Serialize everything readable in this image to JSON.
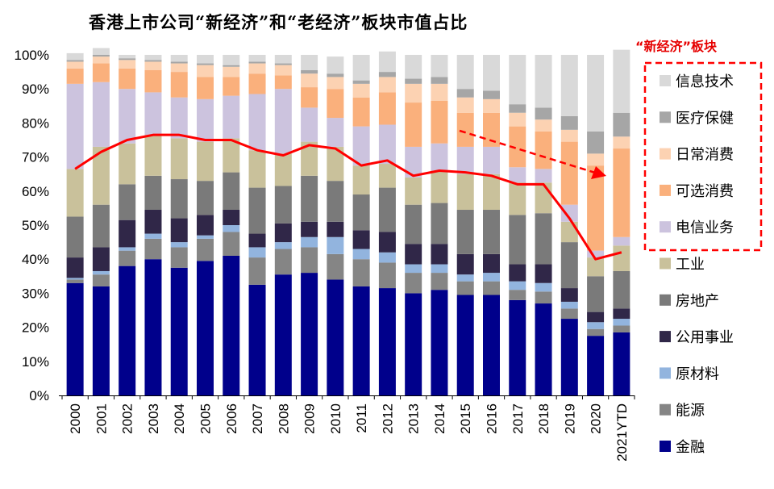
{
  "chart_data": {
    "type": "bar",
    "stacked": true,
    "title": "香港上市公司“新经济”和“老经济”板块市值占比",
    "new_economy_label": "“新经济”板块",
    "categories": [
      "2000",
      "2001",
      "2002",
      "2003",
      "2004",
      "2005",
      "2006",
      "2007",
      "2008",
      "2009",
      "2010",
      "2011",
      "2012",
      "2013",
      "2014",
      "2015",
      "2016",
      "2017",
      "2018",
      "2019",
      "2020",
      "2021YTD"
    ],
    "ylim": [
      0,
      100
    ],
    "yticks": [
      "0%",
      "10%",
      "20%",
      "30%",
      "40%",
      "50%",
      "60%",
      "70%",
      "80%",
      "90%",
      "100%"
    ],
    "series": [
      {
        "name": "金融",
        "color": "#00008b",
        "values": [
          33,
          32,
          38,
          40,
          37.5,
          39.5,
          41,
          32.5,
          35.5,
          36,
          34,
          32,
          31.5,
          30,
          31,
          29.5,
          29.5,
          28,
          27,
          22.5,
          17.5,
          18.5
        ]
      },
      {
        "name": "能源",
        "color": "#858585",
        "values": [
          1,
          3.5,
          4.5,
          6,
          6,
          6.5,
          7,
          8,
          7.5,
          7.5,
          7.5,
          8,
          7.5,
          6,
          5,
          4,
          4,
          3,
          3.5,
          3,
          2,
          2
        ]
      },
      {
        "name": "原材料",
        "color": "#92b4de",
        "values": [
          0.5,
          1,
          1,
          1.5,
          1.5,
          1,
          2,
          3,
          2,
          3,
          5,
          3,
          3,
          2.5,
          2.5,
          2,
          2.5,
          2.5,
          2.5,
          2,
          2,
          2
        ]
      },
      {
        "name": "公用事业",
        "color": "#302748",
        "values": [
          6,
          7,
          8,
          7,
          7,
          6,
          4.5,
          4,
          5.5,
          4.5,
          4.5,
          5.5,
          6,
          6,
          6,
          6,
          5.5,
          5,
          5.5,
          4,
          3,
          3
        ]
      },
      {
        "name": "房地产",
        "color": "#7a7a7a",
        "values": [
          12,
          12.5,
          10.5,
          10,
          11.5,
          10,
          11,
          13.5,
          11,
          13.5,
          12,
          10.5,
          13,
          11.5,
          12,
          13,
          13,
          14.5,
          15,
          13.5,
          10.5,
          11
        ]
      },
      {
        "name": "工业",
        "color": "#c9c19b",
        "values": [
          14,
          17,
          12,
          12,
          12,
          11.5,
          10,
          11,
          9.5,
          10,
          10,
          8.5,
          7,
          8,
          9.5,
          10.5,
          10.5,
          9.5,
          9,
          6,
          5.5,
          7.5
        ]
      },
      {
        "name": "电信业务",
        "color": "#ccc3de",
        "values": [
          25,
          19,
          16,
          12.5,
          12,
          12.5,
          12.5,
          16.5,
          19,
          10,
          8.5,
          11.5,
          11.5,
          9,
          8,
          8,
          8,
          4.5,
          4,
          5,
          2,
          2.5
        ]
      },
      {
        "name": "可选消费",
        "color": "#fab07c",
        "values": [
          4.5,
          5.5,
          6,
          6.5,
          7.5,
          6.5,
          5.5,
          6,
          4,
          6,
          8.5,
          8.5,
          9.5,
          13,
          12.5,
          10,
          10,
          12,
          11,
          18.5,
          25,
          26
        ]
      },
      {
        "name": "日常消费",
        "color": "#fcd2b2",
        "values": [
          2,
          2,
          2.5,
          2.5,
          2.5,
          3.5,
          3,
          3,
          3,
          4,
          3.5,
          4,
          4.5,
          5.5,
          5,
          4.5,
          4,
          4,
          3.5,
          3.5,
          3.5,
          3.5
        ]
      },
      {
        "name": "医疗保健",
        "color": "#a6a6a6",
        "values": [
          0.5,
          0.5,
          0.5,
          0.5,
          0.5,
          0.5,
          0.5,
          0.5,
          0.5,
          1,
          1,
          1,
          1.5,
          1.5,
          2,
          2.5,
          2.5,
          2.5,
          3.5,
          4,
          6.5,
          7
        ]
      },
      {
        "name": "信息技术",
        "color": "#d9d9d9",
        "values": [
          2,
          2,
          1,
          1.5,
          2,
          2.5,
          3,
          2,
          2.5,
          4.5,
          5,
          7.5,
          6,
          7,
          6.5,
          10,
          10.5,
          14.5,
          15.5,
          18,
          22.5,
          18.5
        ]
      }
    ],
    "line": {
      "name": "老经济",
      "color": "#ff0000",
      "values": [
        66.5,
        71.5,
        75,
        76.5,
        76.5,
        75,
        75,
        72,
        70.5,
        73.5,
        72.5,
        67.5,
        69,
        64.5,
        66,
        65.5,
        64.5,
        62,
        62,
        52,
        40,
        42
      ]
    },
    "legend_new_economy": [
      "信息技术",
      "医疗保健",
      "日常消费",
      "可选消费",
      "电信业务"
    ],
    "legend_old_economy": [
      "工业",
      "房地产",
      "公用事业",
      "原材料",
      "能源",
      "金融"
    ]
  }
}
